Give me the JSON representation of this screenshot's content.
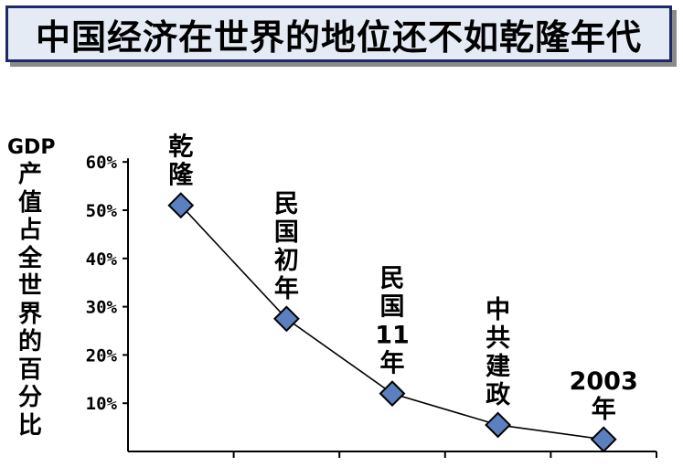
{
  "title": "中国经济在世界的地位还不如乾隆年代",
  "chart_data": {
    "type": "line",
    "ylabel_latin": "GDP",
    "ylabel_cjk": [
      "产",
      "值",
      "占",
      "全",
      "世",
      "界",
      "的",
      "百",
      "分",
      "比"
    ],
    "yticks": [
      "10%",
      "20%",
      "30%",
      "40%",
      "50%",
      "60%"
    ],
    "ylim": [
      0,
      60
    ],
    "categories": [
      [
        "乾",
        "隆"
      ],
      [
        "民",
        "国",
        "初",
        "年"
      ],
      [
        "民",
        "国",
        "11",
        "年"
      ],
      [
        "中",
        "共",
        "建",
        "政"
      ],
      [
        "2003",
        "年"
      ]
    ],
    "values": [
      51,
      27.5,
      12,
      5.5,
      2.5
    ],
    "colors": {
      "marker": "#5b7fbf",
      "line": "#000000",
      "title_bg": "#e4ebf5",
      "title_border": "#1e2a66"
    }
  }
}
